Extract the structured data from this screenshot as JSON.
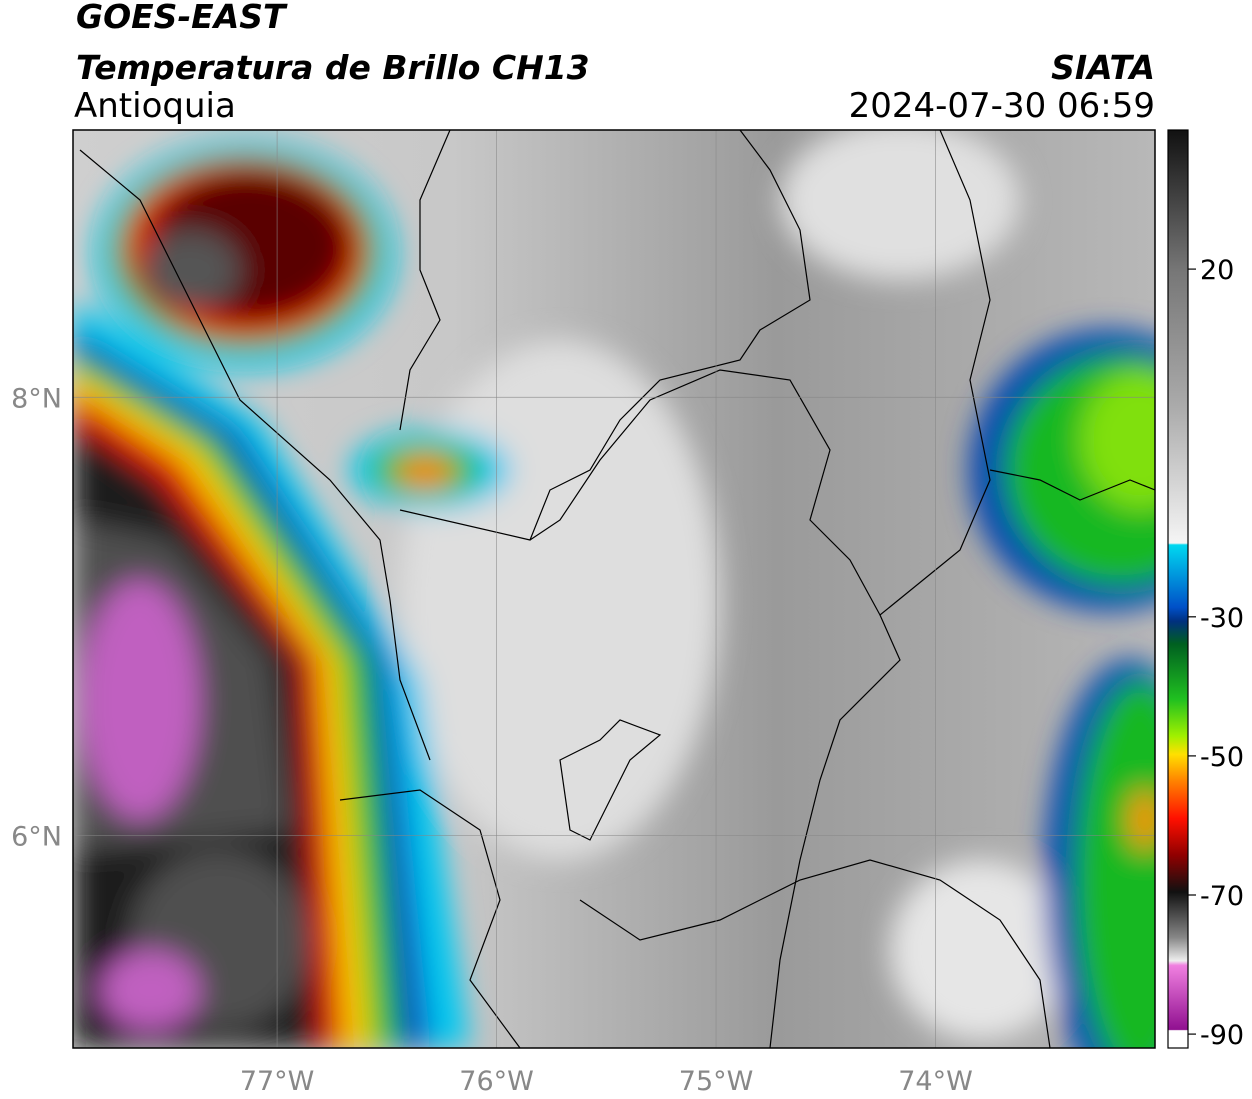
{
  "header": {
    "title": "GOES-EAST",
    "subtitle": "Temperatura de Brillo CH13",
    "region": "Antioquia",
    "source": "SIATA",
    "timestamp": "2024-07-30 06:59"
  },
  "map": {
    "xlim": [
      -77.93,
      -73.0
    ],
    "ylim": [
      5.03,
      9.22
    ],
    "xticks": [
      {
        "value": -77,
        "label": "77°W"
      },
      {
        "value": -76,
        "label": "76°W"
      },
      {
        "value": -75,
        "label": "75°W"
      },
      {
        "value": -74,
        "label": "74°W"
      }
    ],
    "yticks": [
      {
        "value": 8,
        "label": "8°N"
      },
      {
        "value": 6,
        "label": "6°N"
      }
    ],
    "grid": true
  },
  "colorbar": {
    "lim": [
      -92,
      40
    ],
    "ticks": [
      20,
      -30,
      -50,
      -70,
      -90
    ]
  }
}
